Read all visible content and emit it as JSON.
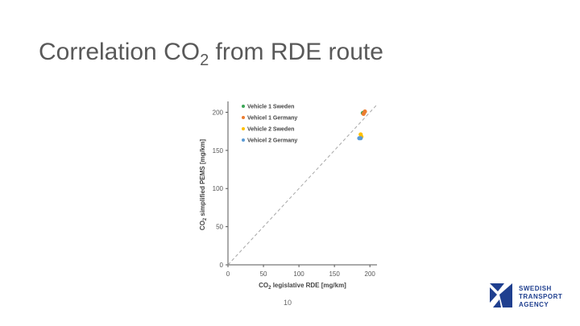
{
  "slide": {
    "title_prefix": "Correlation CO",
    "title_sub": "2",
    "title_suffix": " from RDE route",
    "page_number": "10"
  },
  "logo": {
    "lines": [
      "SWEDISH",
      "TRANSPORT",
      "AGENCY"
    ],
    "color": "#1f3f8f"
  },
  "chart_data": {
    "type": "scatter",
    "title": "",
    "xlabel_prefix": "CO",
    "xlabel_sub": "2",
    "xlabel_suffix": " legislative RDE [mg/km]",
    "ylabel_prefix": "CO",
    "ylabel_sub": "2",
    "ylabel_suffix": " simplified PEMS [mg/km]",
    "xlim": [
      0,
      210
    ],
    "ylim": [
      0,
      210
    ],
    "x_ticks": [
      0,
      50,
      100,
      150,
      200
    ],
    "y_ticks": [
      0,
      50,
      100,
      150,
      200
    ],
    "grid": false,
    "legend_position": "top-left",
    "reference_line": {
      "from": [
        0,
        0
      ],
      "to": [
        210,
        210
      ],
      "style": "dashed",
      "color": "#a6a6a6"
    },
    "series": [
      {
        "name": "Vehicle 1 Sweden",
        "color": "#3aa655",
        "points": [
          [
            190,
            199
          ],
          [
            192,
            200
          ]
        ]
      },
      {
        "name": "Vehicel 1 Germany",
        "color": "#ed7d31",
        "points": [
          [
            193,
            201
          ],
          [
            191,
            198
          ]
        ]
      },
      {
        "name": "Vehicle 2 Sweden",
        "color": "#ffc000",
        "points": [
          [
            187,
            171
          ],
          [
            188,
            168
          ]
        ]
      },
      {
        "name": "Vehicel 2 Germany",
        "color": "#5b9bd5",
        "points": [
          [
            185,
            166
          ],
          [
            187,
            166
          ]
        ]
      }
    ]
  }
}
